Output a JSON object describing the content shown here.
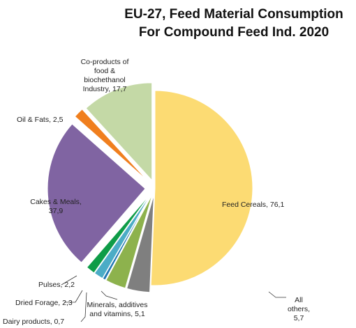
{
  "chart_data": {
    "type": "pie",
    "title": [
      "EU-27, Feed Material Consumption",
      "For Compound Feed Ind. 2020"
    ],
    "slices": [
      {
        "label": [
          "Feed Cereals, 76,1"
        ],
        "value": 76.1,
        "color": "#FCDB73"
      },
      {
        "label": [
          "All",
          "others,",
          "5,7"
        ],
        "value": 5.7,
        "color": "#7F7F7F"
      },
      {
        "label": [
          "Minerals, additives",
          "and vitamins, 5,1"
        ],
        "value": 5.1,
        "color": "#8DB24D"
      },
      {
        "label": [
          "Dairy products, 0,7"
        ],
        "value": 0.7,
        "color": "#1F77B4"
      },
      {
        "label": [
          "Dried Forage, 2,3"
        ],
        "value": 2.3,
        "color": "#4BACC6"
      },
      {
        "label": [
          "Pulses, 2,2"
        ],
        "value": 2.2,
        "color": "#0E9C47"
      },
      {
        "label": [
          "Cakes & Meals,",
          "37,9"
        ],
        "value": 37.9,
        "color": "#8064A2"
      },
      {
        "label": [
          "Oil & Fats, 2,5"
        ],
        "value": 2.5,
        "color": "#F07F1E"
      },
      {
        "label": [
          "Co-products of",
          "food &",
          "biochethanol",
          "Industry, 17,7"
        ],
        "value": 17.7,
        "color": "#C4D9A6"
      }
    ]
  }
}
